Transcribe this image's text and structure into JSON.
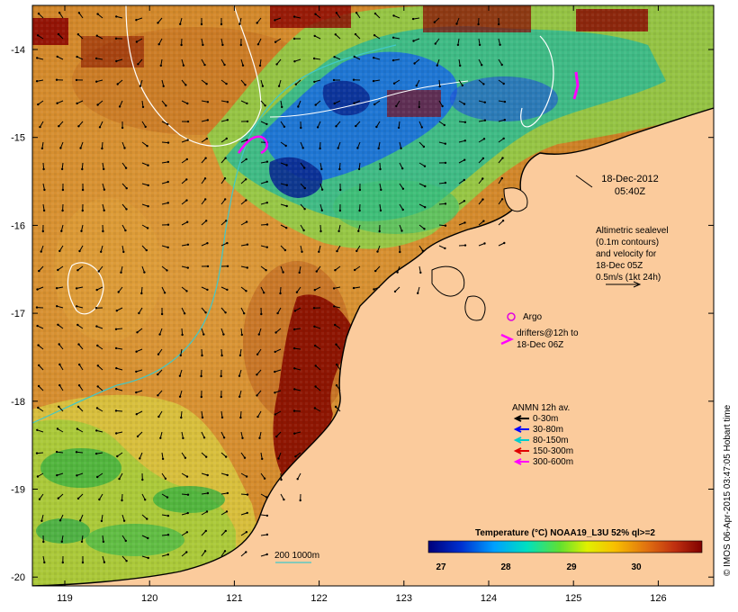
{
  "map": {
    "x_ticks": [
      "119",
      "120",
      "121",
      "122",
      "123",
      "124",
      "125",
      "126"
    ],
    "y_ticks": [
      "-14",
      "-15",
      "-16",
      "-17",
      "-18",
      "-19",
      "-20"
    ],
    "date_line1": "18-Dec-2012",
    "date_line2": "05:40Z",
    "altimetry_lines": [
      "Altimetric sealevel",
      "(0.1m contours)",
      "and velocity for",
      "18-Dec 05Z",
      "0.5m/s (1kt 24h)"
    ],
    "argo_label": "Argo",
    "drifter_lines": [
      "drifters@12h to",
      "18-Dec 06Z"
    ],
    "anmn_title": "ANMN 12h av.",
    "anmn_depths": [
      {
        "label": "0-30m",
        "color": "#000000"
      },
      {
        "label": "30-80m",
        "color": "#0000ff"
      },
      {
        "label": "80-150m",
        "color": "#00cccc"
      },
      {
        "label": "150-300m",
        "color": "#e00000"
      },
      {
        "label": "300-600m",
        "color": "#ff00ff"
      }
    ],
    "isobath_label": "200  1000m",
    "colorbar_title": "Temperature (°C) NOAA19_L3U 52% ql>=2",
    "colorbar_ticks": [
      "27",
      "28",
      "29",
      "30"
    ],
    "credit": "© IMOS 06-Apr-2015 03:47:05 Hobart time",
    "colors": {
      "land": "#fbcb9c",
      "isobath": "#40c8c8",
      "contour": "#ffffff",
      "argo": "#e000e0",
      "drifter": "#ff00ff"
    }
  }
}
